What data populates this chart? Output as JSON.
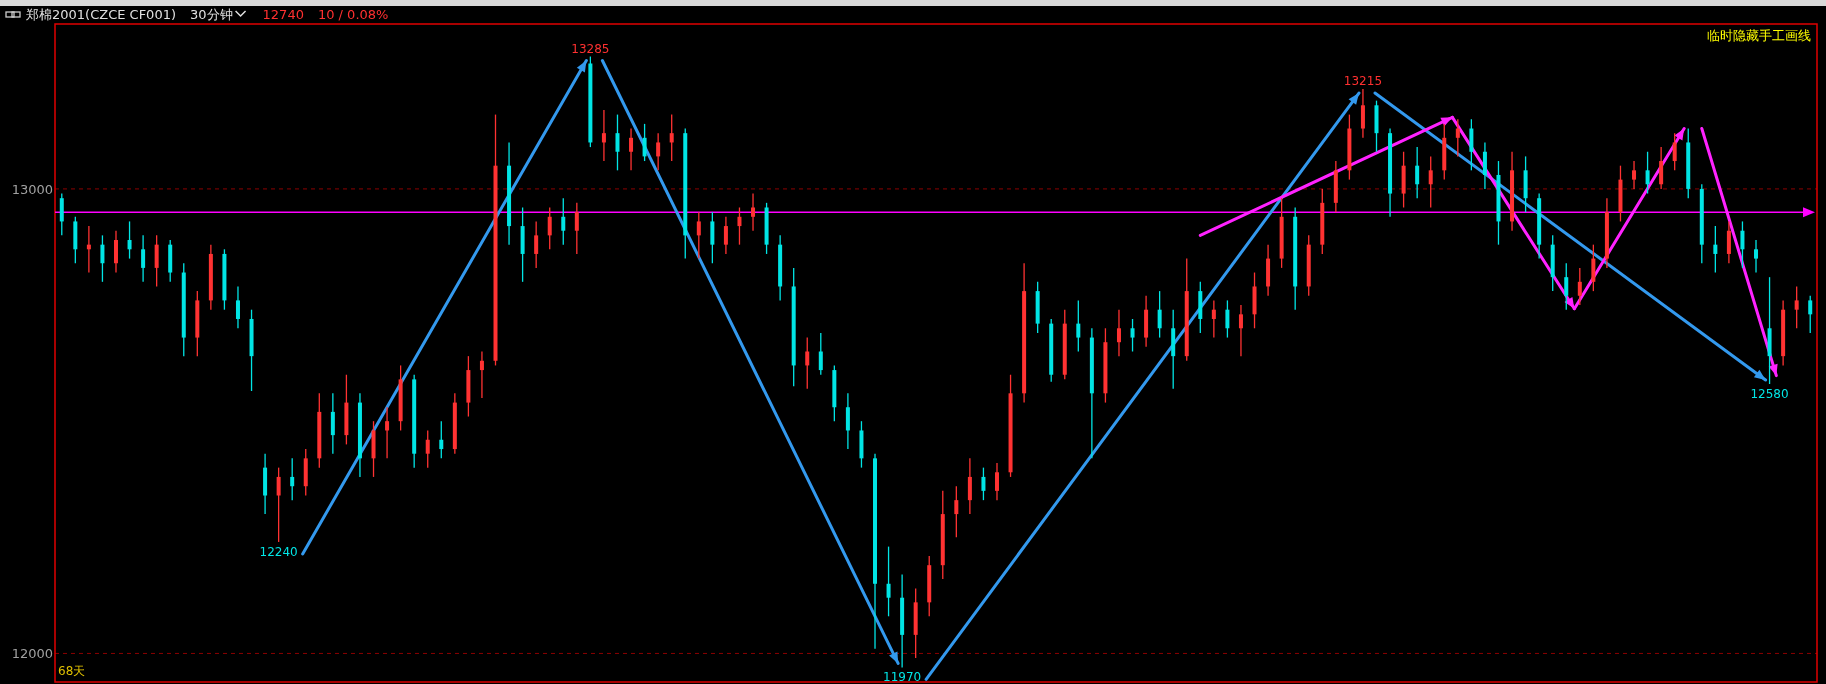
{
  "chart_data": {
    "type": "candlestick",
    "title": "郑棉2001(CZCE CF001)",
    "subtitle": "30分钟",
    "categories": [
      null,
      null,
      null,
      null,
      null,
      null,
      null,
      null,
      null,
      null,
      null,
      null,
      null,
      null,
      null,
      null,
      null,
      null,
      null,
      null,
      null,
      null,
      null,
      null,
      null,
      null,
      null,
      null,
      null,
      null,
      null,
      null,
      null,
      null,
      null,
      null,
      null,
      null,
      null,
      null,
      null,
      null,
      null,
      null,
      null,
      null,
      null,
      null,
      null,
      null,
      null,
      null,
      null,
      null,
      null,
      null,
      null,
      null,
      null,
      null,
      null,
      null,
      null,
      null,
      null,
      null,
      null,
      null,
      null,
      null,
      null,
      null,
      null,
      null,
      null,
      null,
      null,
      null,
      null,
      null,
      null,
      null,
      null,
      null,
      null,
      null,
      null,
      null,
      null,
      null,
      null,
      null,
      null,
      null,
      null,
      null,
      null,
      null,
      null,
      null,
      null,
      null,
      null,
      null,
      null,
      null,
      null,
      null,
      null,
      null,
      null,
      null,
      null,
      null,
      null,
      null,
      null,
      null,
      null,
      null,
      null,
      null,
      null,
      null,
      null,
      null,
      null,
      null,
      null,
      null
    ],
    "ohlc": [
      [
        12980,
        12990,
        12900,
        12930
      ],
      [
        12930,
        12940,
        12840,
        12870
      ],
      [
        12870,
        12920,
        12820,
        12880
      ],
      [
        12880,
        12900,
        12800,
        12840
      ],
      [
        12840,
        12910,
        12820,
        12890
      ],
      [
        12890,
        12930,
        12850,
        12870
      ],
      [
        12870,
        12900,
        12800,
        12830
      ],
      [
        12830,
        12900,
        12790,
        12880
      ],
      [
        12880,
        12890,
        12800,
        12820
      ],
      [
        12820,
        12840,
        12640,
        12680
      ],
      [
        12680,
        12780,
        12640,
        12760
      ],
      [
        12760,
        12880,
        12740,
        12860
      ],
      [
        12860,
        12870,
        12740,
        12760
      ],
      [
        12760,
        12790,
        12700,
        12720
      ],
      [
        12720,
        12740,
        12565,
        12640
      ],
      [
        12400,
        12430,
        12300,
        12340
      ],
      [
        12340,
        12400,
        12240,
        12380
      ],
      [
        12380,
        12420,
        12330,
        12360
      ],
      [
        12360,
        12440,
        12340,
        12420
      ],
      [
        12420,
        12560,
        12400,
        12520
      ],
      [
        12520,
        12560,
        12430,
        12470
      ],
      [
        12470,
        12600,
        12450,
        12540
      ],
      [
        12540,
        12560,
        12380,
        12420
      ],
      [
        12420,
        12500,
        12380,
        12480
      ],
      [
        12480,
        12530,
        12420,
        12500
      ],
      [
        12500,
        12620,
        12480,
        12590
      ],
      [
        12590,
        12600,
        12400,
        12430
      ],
      [
        12430,
        12480,
        12400,
        12460
      ],
      [
        12460,
        12500,
        12420,
        12440
      ],
      [
        12440,
        12560,
        12430,
        12540
      ],
      [
        12540,
        12640,
        12510,
        12610
      ],
      [
        12610,
        12650,
        12550,
        12630
      ],
      [
        12630,
        13160,
        12620,
        13050
      ],
      [
        13050,
        13100,
        12880,
        12920
      ],
      [
        12920,
        12960,
        12800,
        12860
      ],
      [
        12860,
        12930,
        12830,
        12900
      ],
      [
        12900,
        12960,
        12870,
        12940
      ],
      [
        12940,
        12980,
        12880,
        12910
      ],
      [
        12910,
        12970,
        12860,
        12950
      ],
      [
        13270,
        13285,
        13090,
        13100
      ],
      [
        13100,
        13170,
        13060,
        13120
      ],
      [
        13120,
        13160,
        13040,
        13080
      ],
      [
        13080,
        13130,
        13040,
        13110
      ],
      [
        13110,
        13140,
        13060,
        13070
      ],
      [
        13070,
        13120,
        13040,
        13100
      ],
      [
        13100,
        13160,
        13060,
        13120
      ],
      [
        13120,
        13130,
        12850,
        12900
      ],
      [
        12900,
        12950,
        12850,
        12930
      ],
      [
        12930,
        12950,
        12840,
        12880
      ],
      [
        12880,
        12940,
        12860,
        12920
      ],
      [
        12920,
        12960,
        12880,
        12940
      ],
      [
        12940,
        12990,
        12910,
        12960
      ],
      [
        12960,
        12970,
        12860,
        12880
      ],
      [
        12880,
        12900,
        12760,
        12790
      ],
      [
        12790,
        12830,
        12575,
        12620
      ],
      [
        12620,
        12680,
        12570,
        12650
      ],
      [
        12650,
        12690,
        12600,
        12610
      ],
      [
        12610,
        12620,
        12500,
        12530
      ],
      [
        12530,
        12560,
        12440,
        12480
      ],
      [
        12480,
        12500,
        12400,
        12420
      ],
      [
        12420,
        12430,
        12010,
        12150
      ],
      [
        12150,
        12230,
        12080,
        12120
      ],
      [
        12120,
        12170,
        11970,
        12040
      ],
      [
        12040,
        12140,
        11990,
        12110
      ],
      [
        12110,
        12210,
        12080,
        12190
      ],
      [
        12190,
        12350,
        12160,
        12300
      ],
      [
        12300,
        12360,
        12250,
        12330
      ],
      [
        12330,
        12420,
        12300,
        12380
      ],
      [
        12380,
        12400,
        12330,
        12350
      ],
      [
        12350,
        12410,
        12330,
        12390
      ],
      [
        12390,
        12600,
        12380,
        12560
      ],
      [
        12560,
        12840,
        12540,
        12780
      ],
      [
        12780,
        12800,
        12690,
        12710
      ],
      [
        12710,
        12720,
        12585,
        12600
      ],
      [
        12600,
        12740,
        12590,
        12710
      ],
      [
        12710,
        12760,
        12650,
        12680
      ],
      [
        12680,
        12700,
        12420,
        12560
      ],
      [
        12560,
        12700,
        12540,
        12670
      ],
      [
        12670,
        12740,
        12640,
        12700
      ],
      [
        12700,
        12720,
        12650,
        12680
      ],
      [
        12680,
        12770,
        12660,
        12740
      ],
      [
        12740,
        12780,
        12680,
        12700
      ],
      [
        12700,
        12740,
        12570,
        12640
      ],
      [
        12640,
        12850,
        12630,
        12780
      ],
      [
        12780,
        12800,
        12690,
        12720
      ],
      [
        12720,
        12760,
        12680,
        12740
      ],
      [
        12740,
        12760,
        12680,
        12700
      ],
      [
        12700,
        12750,
        12640,
        12730
      ],
      [
        12730,
        12820,
        12700,
        12790
      ],
      [
        12790,
        12880,
        12770,
        12850
      ],
      [
        12850,
        12980,
        12830,
        12940
      ],
      [
        12940,
        12960,
        12740,
        12790
      ],
      [
        12790,
        12900,
        12770,
        12880
      ],
      [
        12880,
        13000,
        12860,
        12970
      ],
      [
        12970,
        13060,
        12950,
        13040
      ],
      [
        13040,
        13160,
        13020,
        13130
      ],
      [
        13130,
        13215,
        13110,
        13180
      ],
      [
        13180,
        13190,
        13080,
        13120
      ],
      [
        13120,
        13130,
        12940,
        12990
      ],
      [
        12990,
        13080,
        12960,
        13050
      ],
      [
        13050,
        13090,
        12980,
        13010
      ],
      [
        13010,
        13070,
        12960,
        13040
      ],
      [
        13040,
        13140,
        13020,
        13110
      ],
      [
        13110,
        13150,
        13070,
        13130
      ],
      [
        13130,
        13150,
        13040,
        13080
      ],
      [
        13080,
        13100,
        13000,
        13030
      ],
      [
        13030,
        13060,
        12880,
        12930
      ],
      [
        12930,
        13080,
        12910,
        13040
      ],
      [
        13040,
        13070,
        12950,
        12980
      ],
      [
        12980,
        12990,
        12850,
        12880
      ],
      [
        12880,
        12900,
        12780,
        12810
      ],
      [
        12810,
        12840,
        12740,
        12770
      ],
      [
        12770,
        12830,
        12750,
        12800
      ],
      [
        12800,
        12880,
        12780,
        12850
      ],
      [
        12850,
        12980,
        12830,
        12950
      ],
      [
        12950,
        13050,
        12930,
        13020
      ],
      [
        13020,
        13060,
        13000,
        13040
      ],
      [
        13040,
        13080,
        12990,
        13010
      ],
      [
        13010,
        13090,
        13000,
        13060
      ],
      [
        13060,
        13120,
        13040,
        13100
      ],
      [
        13100,
        13130,
        12980,
        13000
      ],
      [
        13000,
        13010,
        12840,
        12880
      ],
      [
        12880,
        12920,
        12820,
        12860
      ],
      [
        12860,
        12930,
        12840,
        12910
      ],
      [
        12910,
        12930,
        12830,
        12870
      ],
      [
        12870,
        12890,
        12820,
        12850
      ],
      [
        12700,
        12810,
        12580,
        12640
      ],
      [
        12640,
        12760,
        12620,
        12740
      ],
      [
        12740,
        12790,
        12700,
        12760
      ],
      [
        12760,
        12770,
        12690,
        12730
      ]
    ],
    "ylim": [
      11945,
      13355
    ],
    "yticks": [
      12000,
      13000
    ],
    "grid": "y",
    "tick_labels": "y",
    "ref_lines": [
      {
        "axis": "y",
        "value": 12950,
        "color": "#ff00ff"
      }
    ],
    "annotations": [
      "12240",
      "13285",
      "11970",
      "13215",
      "12580",
      "12740",
      "10 / 0.08%",
      "临时隐藏手工画线",
      "68天"
    ]
  }
}
